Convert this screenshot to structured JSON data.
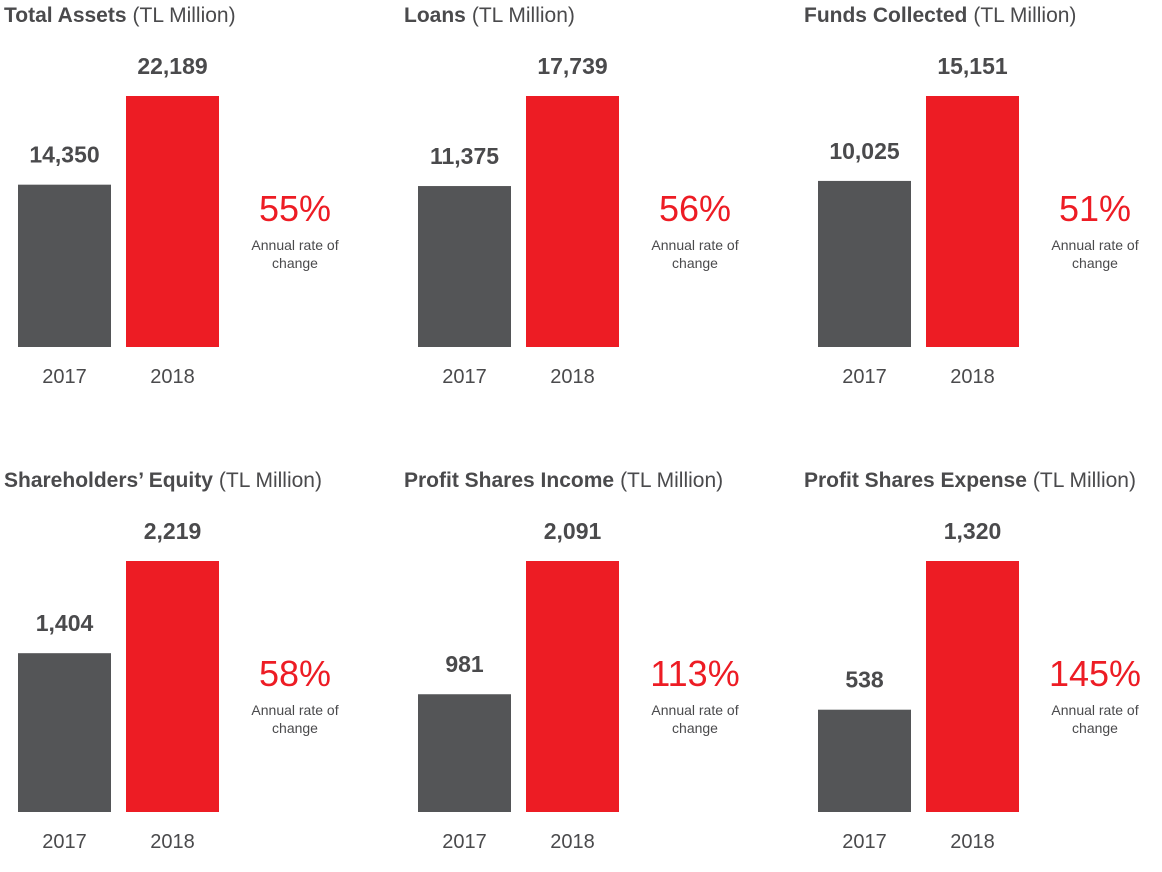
{
  "colors": {
    "bar_2017": "#545557",
    "bar_2018": "#ed1c24",
    "text_dark": "#4a4a4c",
    "accent": "#ed1c24"
  },
  "chart_data": [
    {
      "type": "bar",
      "title": "Total Assets",
      "unit": "(TL Million)",
      "categories": [
        "2017",
        "2018"
      ],
      "values": [
        14350,
        22189
      ],
      "value_labels": [
        "14,350",
        "22,189"
      ],
      "change_pct": "55%",
      "change_label_line1": "Annual rate of",
      "change_label_line2": "change",
      "ylim": [
        0,
        22189
      ]
    },
    {
      "type": "bar",
      "title": "Loans",
      "unit": "(TL Million)",
      "categories": [
        "2017",
        "2018"
      ],
      "values": [
        11375,
        17739
      ],
      "value_labels": [
        "11,375",
        "17,739"
      ],
      "change_pct": "56%",
      "change_label_line1": "Annual rate of",
      "change_label_line2": "change",
      "ylim": [
        0,
        17739
      ]
    },
    {
      "type": "bar",
      "title": "Funds Collected",
      "unit": "(TL Million)",
      "categories": [
        "2017",
        "2018"
      ],
      "values": [
        10025,
        15151
      ],
      "value_labels": [
        "10,025",
        "15,151"
      ],
      "change_pct": "51%",
      "change_label_line1": "Annual rate of",
      "change_label_line2": "change",
      "ylim": [
        0,
        15151
      ]
    },
    {
      "type": "bar",
      "title": "Shareholders’ Equity",
      "unit": "(TL Million)",
      "categories": [
        "2017",
        "2018"
      ],
      "values": [
        1404,
        2219
      ],
      "value_labels": [
        "1,404",
        "2,219"
      ],
      "change_pct": "58%",
      "change_label_line1": "Annual rate of",
      "change_label_line2": "change",
      "ylim": [
        0,
        2219
      ]
    },
    {
      "type": "bar",
      "title": "Profit Shares Income",
      "unit": "(TL Million)",
      "categories": [
        "2017",
        "2018"
      ],
      "values": [
        981,
        2091
      ],
      "value_labels": [
        "981",
        "2,091"
      ],
      "change_pct": "113%",
      "change_label_line1": "Annual rate of",
      "change_label_line2": "change",
      "ylim": [
        0,
        2091
      ]
    },
    {
      "type": "bar",
      "title": "Profit Shares Expense",
      "unit": "(TL Million)",
      "categories": [
        "2017",
        "2018"
      ],
      "values": [
        538,
        1320
      ],
      "value_labels": [
        "538",
        "1,320"
      ],
      "change_pct": "145%",
      "change_label_line1": "Annual rate of",
      "change_label_line2": "change",
      "ylim": [
        0,
        1320
      ]
    }
  ]
}
